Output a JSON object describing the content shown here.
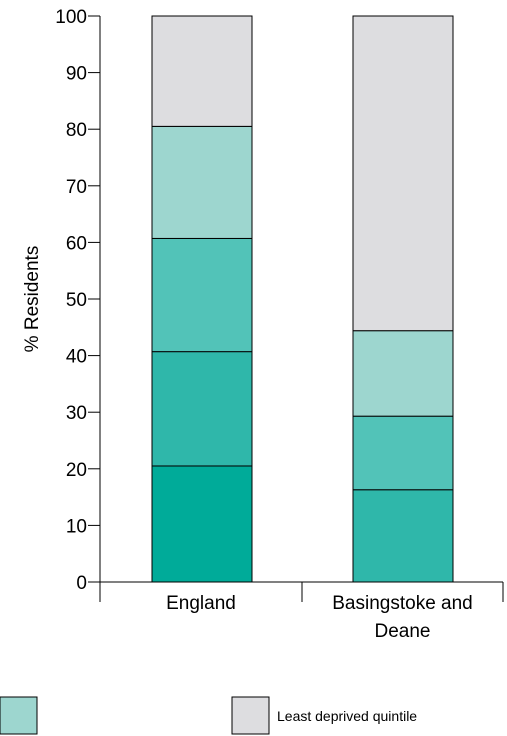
{
  "chart_data": {
    "type": "bar",
    "stacked": true,
    "title": "",
    "xlabel": "",
    "ylabel": "% Residents",
    "ylim": [
      0,
      100
    ],
    "yticks": [
      0,
      10,
      20,
      30,
      40,
      50,
      60,
      70,
      80,
      90,
      100
    ],
    "categories": [
      {
        "lines": [
          "England"
        ]
      },
      {
        "lines": [
          "Basingstoke and",
          "Deane"
        ]
      }
    ],
    "series": [
      {
        "color": "#00ab99",
        "values": [
          20.5,
          0
        ]
      },
      {
        "color": "#2fb7aa",
        "values": [
          20.2,
          16.3
        ]
      },
      {
        "color": "#52c3b8",
        "values": [
          20.0,
          13.0
        ]
      },
      {
        "color": "#9dd6cf",
        "values": [
          19.8,
          15.1
        ]
      },
      {
        "name": "Least deprived quintile",
        "color": "#dddde0",
        "values": [
          19.5,
          55.6
        ]
      }
    ],
    "legend": {
      "placement": "bottom",
      "items": [
        {
          "color": "#9dd6cf",
          "label": ""
        },
        {
          "color": "#dddde0",
          "label": "Least deprived quintile"
        }
      ]
    }
  }
}
